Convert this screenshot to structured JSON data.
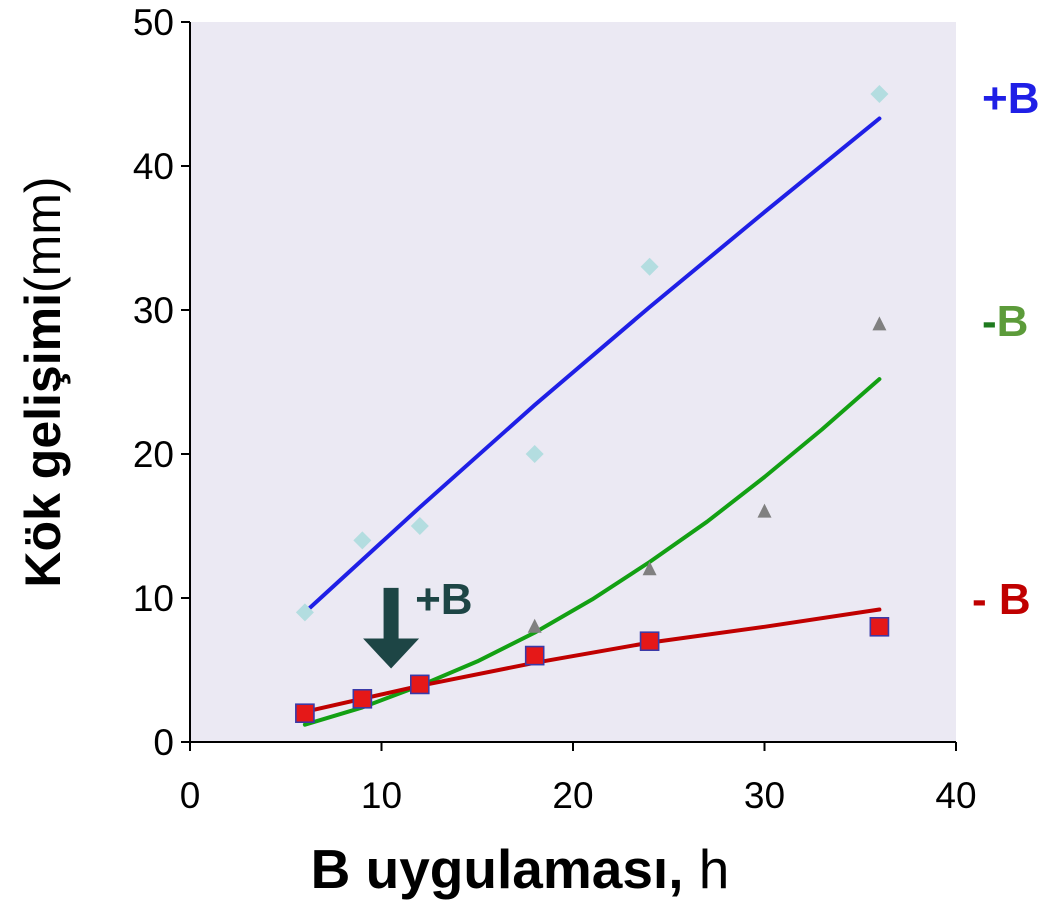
{
  "chart_data": {
    "type": "scatter",
    "xlabel_bold": "B uygulaması,",
    "xlabel_unit": "h",
    "ylabel_bold": "Kök gelişimi",
    "ylabel_unit": "(mm)",
    "xlim": [
      0,
      40
    ],
    "ylim": [
      0,
      50
    ],
    "x_ticks": [
      "0",
      "10",
      "20",
      "30",
      "40"
    ],
    "y_ticks": [
      "0",
      "10",
      "20",
      "30",
      "40",
      "50"
    ],
    "grid": false,
    "plot_background": "#ebe9f3",
    "series": [
      {
        "name": "+B",
        "label_color": "#1f1fe6",
        "marker": "diamond",
        "marker_color": "#b3dde0",
        "trend_color": "#1f1fe6",
        "points": [
          [
            6,
            9
          ],
          [
            9,
            14
          ],
          [
            12,
            15
          ],
          [
            18,
            20
          ],
          [
            24,
            33
          ],
          [
            36,
            45
          ]
        ],
        "trend": [
          [
            6,
            9
          ],
          [
            12,
            16.3
          ],
          [
            18,
            23.4
          ],
          [
            24,
            30.2
          ],
          [
            30,
            36.8
          ],
          [
            36,
            43.3
          ]
        ]
      },
      {
        "name": "-B",
        "label_color_dash": "#1e7a1e",
        "label_color": "#5c9b3a",
        "marker": "triangle",
        "marker_color": "#808080",
        "trend_color": "#13a013",
        "points": [
          [
            6,
            2
          ],
          [
            9,
            3
          ],
          [
            12,
            4
          ],
          [
            18,
            8
          ],
          [
            24,
            12
          ],
          [
            30,
            16
          ],
          [
            36,
            29
          ]
        ],
        "trend": [
          [
            6,
            1.2
          ],
          [
            9,
            2.4
          ],
          [
            12,
            3.9
          ],
          [
            15,
            5.6
          ],
          [
            18,
            7.6
          ],
          [
            21,
            9.9
          ],
          [
            24,
            12.5
          ],
          [
            27,
            15.3
          ],
          [
            30,
            18.4
          ],
          [
            33,
            21.7
          ],
          [
            36,
            25.2
          ]
        ]
      },
      {
        "name": "- B",
        "label_color": "#c00000",
        "marker": "square",
        "marker_color": "#e51818",
        "marker_edge": "#3a3aa8",
        "trend_color": "#c00000",
        "points": [
          [
            6,
            2
          ],
          [
            9,
            3
          ],
          [
            12,
            4
          ],
          [
            18,
            6
          ],
          [
            24,
            7
          ],
          [
            36,
            8
          ]
        ],
        "trend": [
          [
            6,
            2.1
          ],
          [
            12,
            3.9
          ],
          [
            18,
            5.5
          ],
          [
            24,
            6.9
          ],
          [
            30,
            8.0
          ],
          [
            36,
            9.2
          ]
        ]
      }
    ],
    "annotation": {
      "text": "+B",
      "color": "#1d4545",
      "arrow_x": 10.5,
      "arrow_y_top": 10.7,
      "arrow_y_bottom": 5.1
    }
  }
}
